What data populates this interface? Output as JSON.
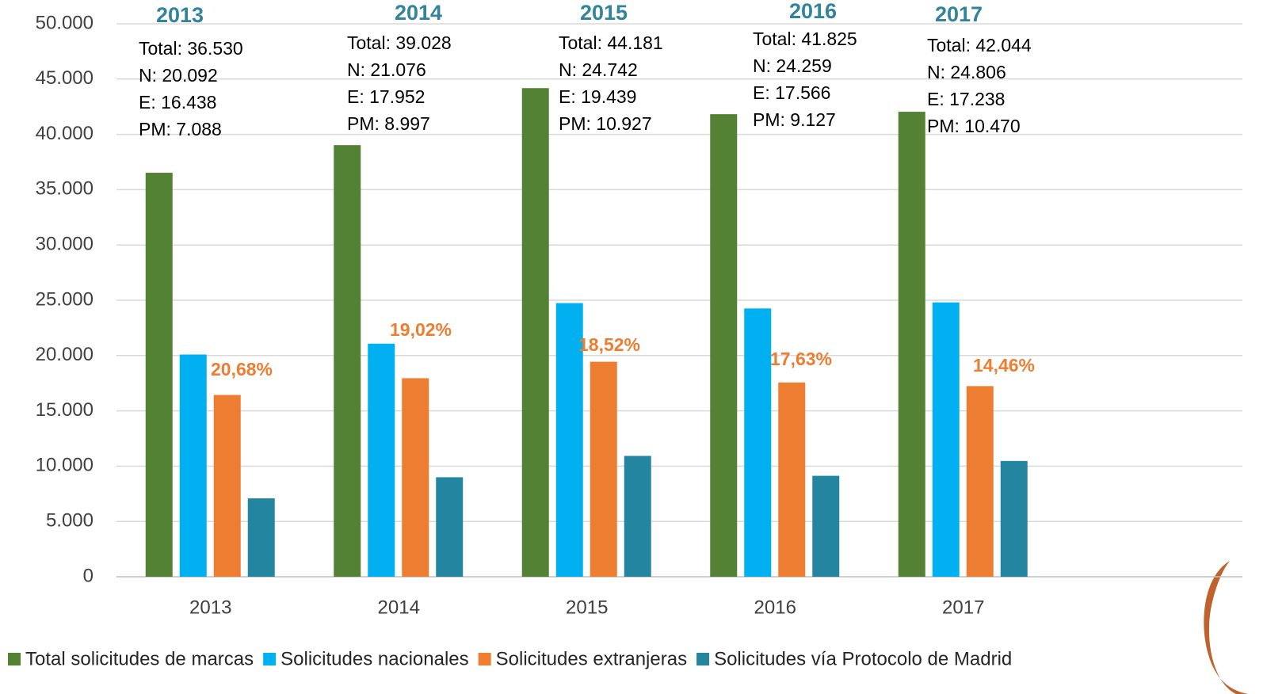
{
  "chart_data": {
    "type": "bar",
    "categories": [
      "2013",
      "2014",
      "2015",
      "2016",
      "2017"
    ],
    "series": [
      {
        "name": "Total solicitudes de marcas",
        "color": "#548235",
        "values": [
          36530,
          39028,
          44181,
          41825,
          42044
        ]
      },
      {
        "name": "Solicitudes nacionales",
        "color": "#00b0f0",
        "values": [
          20092,
          21076,
          24742,
          24259,
          24806
        ]
      },
      {
        "name": "Solicitudes extranjeras",
        "color": "#ed7d31",
        "values": [
          16438,
          17952,
          19439,
          17566,
          17238
        ]
      },
      {
        "name": "Solicitudes vía Protocolo de Madrid",
        "color": "#2385a0",
        "values": [
          7088,
          8997,
          10927,
          9127,
          10470
        ]
      }
    ],
    "ylim": [
      0,
      50000
    ],
    "yticks": [
      0,
      {
        "value": 5000,
        "label": "5.000"
      },
      {
        "value": 10000,
        "label": "10.000"
      },
      {
        "value": 15000,
        "label": "15.000"
      },
      {
        "value": 20000,
        "label": "20.000"
      },
      {
        "value": 25000,
        "label": "25.000"
      },
      {
        "value": 30000,
        "label": "30.000"
      },
      {
        "value": 35000,
        "label": "35.000"
      },
      {
        "value": 40000,
        "label": "40.000"
      },
      {
        "value": 45000,
        "label": "45.000"
      },
      {
        "value": 50000,
        "label": "50.000"
      }
    ],
    "grid": true,
    "legend": "bottom",
    "annotations": [
      {
        "year": "2013",
        "lines": [
          "Total: 36.530",
          "N: 20.092",
          "E:  16.438",
          "PM: 7.088"
        ],
        "percent": "20,68%"
      },
      {
        "year": "2014",
        "lines": [
          "Total: 39.028",
          "N: 21.076",
          "E:  17.952",
          "PM: 8.997"
        ],
        "percent": "19,02%"
      },
      {
        "year": "2015",
        "lines": [
          "Total: 44.181",
          "N: 24.742",
          "E:  19.439",
          "PM: 10.927"
        ],
        "percent": "18,52%"
      },
      {
        "year": "2016",
        "lines": [
          "Total: 41.825",
          "N: 24.259",
          "E:  17.566",
          "PM: 9.127"
        ],
        "percent": "17,63%"
      },
      {
        "year": "2017",
        "lines": [
          "Total:  42.044",
          "N: 24.806",
          "E:  17.238",
          "PM: 10.470"
        ],
        "percent": "14,46%"
      }
    ]
  }
}
